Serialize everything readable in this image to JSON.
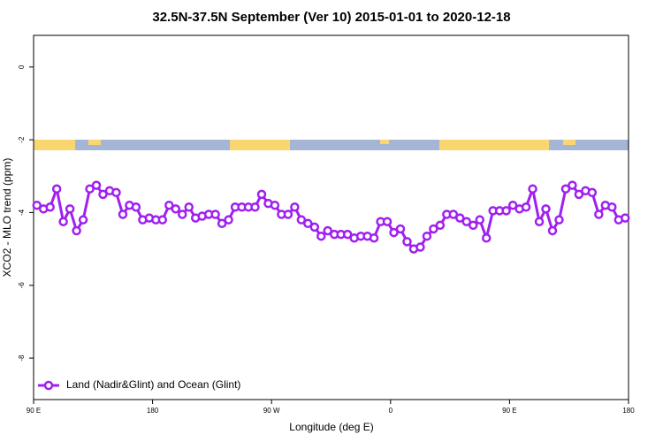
{
  "chart_data": {
    "type": "line",
    "title": "32.5N-37.5N September (Ver 10)   2015-01-01 to 2020-12-18",
    "x_label": "Longitude (deg E)",
    "y_label": "XCO2 - MLO trend (ppm)",
    "xlim": [
      90,
      540
    ],
    "ylim": [
      -9.14,
      0.87
    ],
    "xticks": [
      {
        "value": 90,
        "label": "90 E"
      },
      180,
      {
        "value": 270,
        "label": "90 W"
      },
      {
        "value": 360,
        "label": "0"
      },
      {
        "value": 450,
        "label": "90 E"
      },
      {
        "value": 540,
        "label": "180"
      }
    ],
    "yticks": [
      -8,
      -6,
      -4,
      -2,
      0
    ],
    "legend": "bottom-left",
    "x": [
      92.5,
      97.5,
      102.5,
      107.5,
      112.5,
      117.5,
      122.5,
      127.5,
      132.5,
      137.5,
      142.5,
      147.5,
      152.5,
      157.5,
      162.5,
      167.5,
      172.5,
      177.5,
      182.5,
      187.5,
      192.5,
      197.5,
      202.5,
      207.5,
      212.5,
      217.5,
      222.5,
      227.5,
      232.5,
      237.5,
      242.5,
      247.5,
      252.5,
      257.5,
      262.5,
      267.5,
      272.5,
      277.5,
      282.5,
      287.5,
      292.5,
      297.5,
      302.5,
      307.5,
      312.5,
      317.5,
      322.5,
      327.5,
      332.5,
      337.5,
      342.5,
      347.5,
      352.5,
      357.5,
      362.5,
      367.5,
      372.5,
      377.5,
      382.5,
      387.5,
      392.5,
      397.5,
      402.5,
      407.5,
      412.5,
      417.5,
      422.5,
      427.5,
      432.5,
      437.5,
      442.5,
      447.5,
      452.5,
      457.5,
      462.5,
      467.5,
      472.5,
      477.5,
      482.5,
      487.5,
      492.5,
      497.5,
      502.5,
      507.5,
      512.5,
      517.5,
      522.5,
      527.5,
      532.5,
      537.5
    ],
    "series": [
      {
        "name": "Land (Nadir&Glint) and Ocean (Glint)",
        "color": "#a020f0",
        "values": [
          -3.8,
          -3.9,
          -3.85,
          -3.35,
          -4.25,
          -3.9,
          -4.5,
          -4.2,
          -3.35,
          -3.25,
          -3.5,
          -3.4,
          -3.45,
          -4.05,
          -3.8,
          -3.85,
          -4.2,
          -4.15,
          -4.2,
          -4.2,
          -3.8,
          -3.9,
          -4.05,
          -3.85,
          -4.15,
          -4.1,
          -4.05,
          -4.05,
          -4.3,
          -4.2,
          -3.85,
          -3.85,
          -3.85,
          -3.85,
          -3.5,
          -3.75,
          -3.8,
          -4.05,
          -4.05,
          -3.85,
          -4.2,
          -4.3,
          -4.4,
          -4.65,
          -4.5,
          -4.6,
          -4.6,
          -4.6,
          -4.7,
          -4.65,
          -4.65,
          -4.7,
          -4.25,
          -4.25,
          -4.55,
          -4.45,
          -4.8,
          -5.0,
          -4.95,
          -4.65,
          -4.45,
          -4.35,
          -4.05,
          -4.05,
          -4.15,
          -4.25,
          -4.35,
          -4.2,
          -4.7,
          -3.95,
          -3.95,
          -3.95,
          -3.8,
          -3.9,
          -3.85,
          -3.35,
          -4.25,
          -3.9,
          -4.5,
          -4.2,
          -3.35,
          -3.25,
          -3.5,
          -3.4,
          -3.45,
          -4.05,
          -3.8,
          -3.85,
          -4.2,
          -4.15
        ]
      }
    ]
  }
}
